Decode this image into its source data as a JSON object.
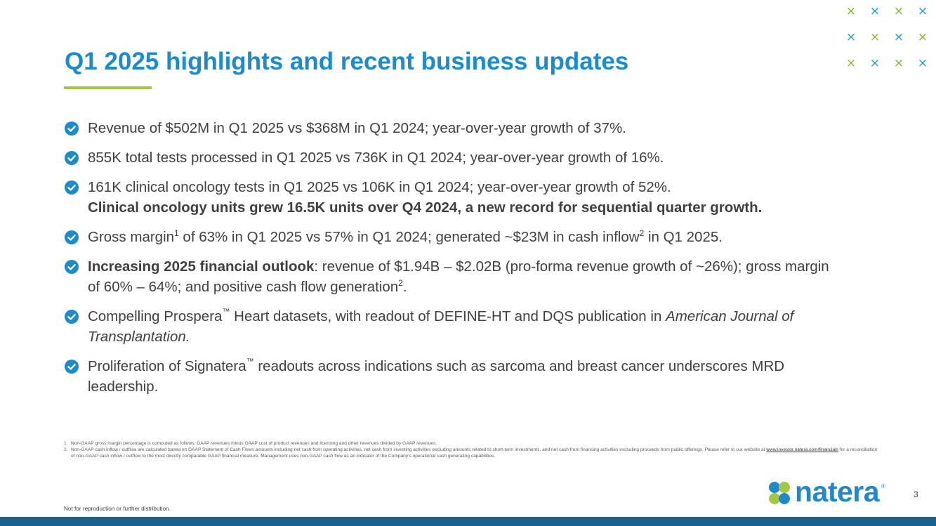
{
  "slide": {
    "title": "Q1 2025 highlights and recent business updates",
    "page_number": "3",
    "disclaimer": "Not for reproduction or further distribution."
  },
  "colors": {
    "title": "#1a8ccc",
    "accent_green": "#a3c644",
    "check": "#1a8ccc",
    "footer_bar": "#1b5f8a"
  },
  "decor": {
    "x_glyph": "×",
    "x_pattern_colors": [
      "green",
      "blue",
      "green",
      "blue",
      "blue",
      "green",
      "blue",
      "green",
      "green",
      "blue",
      "green",
      "blue"
    ]
  },
  "bullets": {
    "b1": {
      "text": "Revenue of $502M in Q1 2025 vs $368M in Q1 2024; year-over-year growth of 37%."
    },
    "b2": {
      "text": "855K total tests processed in Q1 2025 vs 736K in Q1 2024; year-over-year growth of 16%."
    },
    "b3": {
      "line1": "161K clinical oncology tests in Q1 2025 vs 106K in Q1 2024; year-over-year growth of 52%.",
      "line2_bold": "Clinical oncology units grew 16.5K units over Q4 2024, a new record for sequential quarter growth."
    },
    "b4": {
      "part1": "Gross margin",
      "sup1": "1",
      "part2": " of 63% in Q1 2025 vs 57% in Q1 2024; generated ~$23M in cash inflow",
      "sup2": "2",
      "part3": " in Q1 2025."
    },
    "b5": {
      "bold": "Increasing 2025 financial outlook",
      "rest": ": revenue of $1.94B – $2.02B (pro-forma revenue growth of ~26%); gross margin of 60% – 64%; and positive cash flow generation",
      "sup": "2",
      "end": "."
    },
    "b6": {
      "part1": "Compelling Prospera",
      "tm": "™",
      "part2": " Heart datasets, with readout of DEFINE-HT and DQS publication in ",
      "italic": "American Journal of Transplantation."
    },
    "b7": {
      "part1": "Proliferation of Signatera",
      "tm": "™",
      "part2": " readouts across indications such as sarcoma and breast cancer underscores MRD leadership."
    }
  },
  "footnotes": {
    "n1": {
      "num": "1.",
      "text": "Non-GAAP gross margin percentage is computed as follows:  GAAP revenues minus GAAP cost of product revenues and licensing and other revenues divided by GAAP revenues."
    },
    "n2": {
      "num": "2.",
      "text_before": "Non-GAAP cash inflow / outflow are calculated based on GAAP Statement of Cash Flows amounts including net cash from operating activities, net cash from investing activities excluding amounts related to short-term investments, and net cash from financing activities excluding proceeds from public offerings. Please refer to our website at ",
      "link": "www.investor.natera.com/financials",
      "text_after": " for a reconciliation of non-GAAP cash inflow / outflow to the most directly comparable GAAP financial measure. Management uses non-GAAP cash flow as an indicator of the Company’s operational cash generating capabilities."
    }
  },
  "logo": {
    "wordmark": "natera",
    "registered": "®"
  }
}
